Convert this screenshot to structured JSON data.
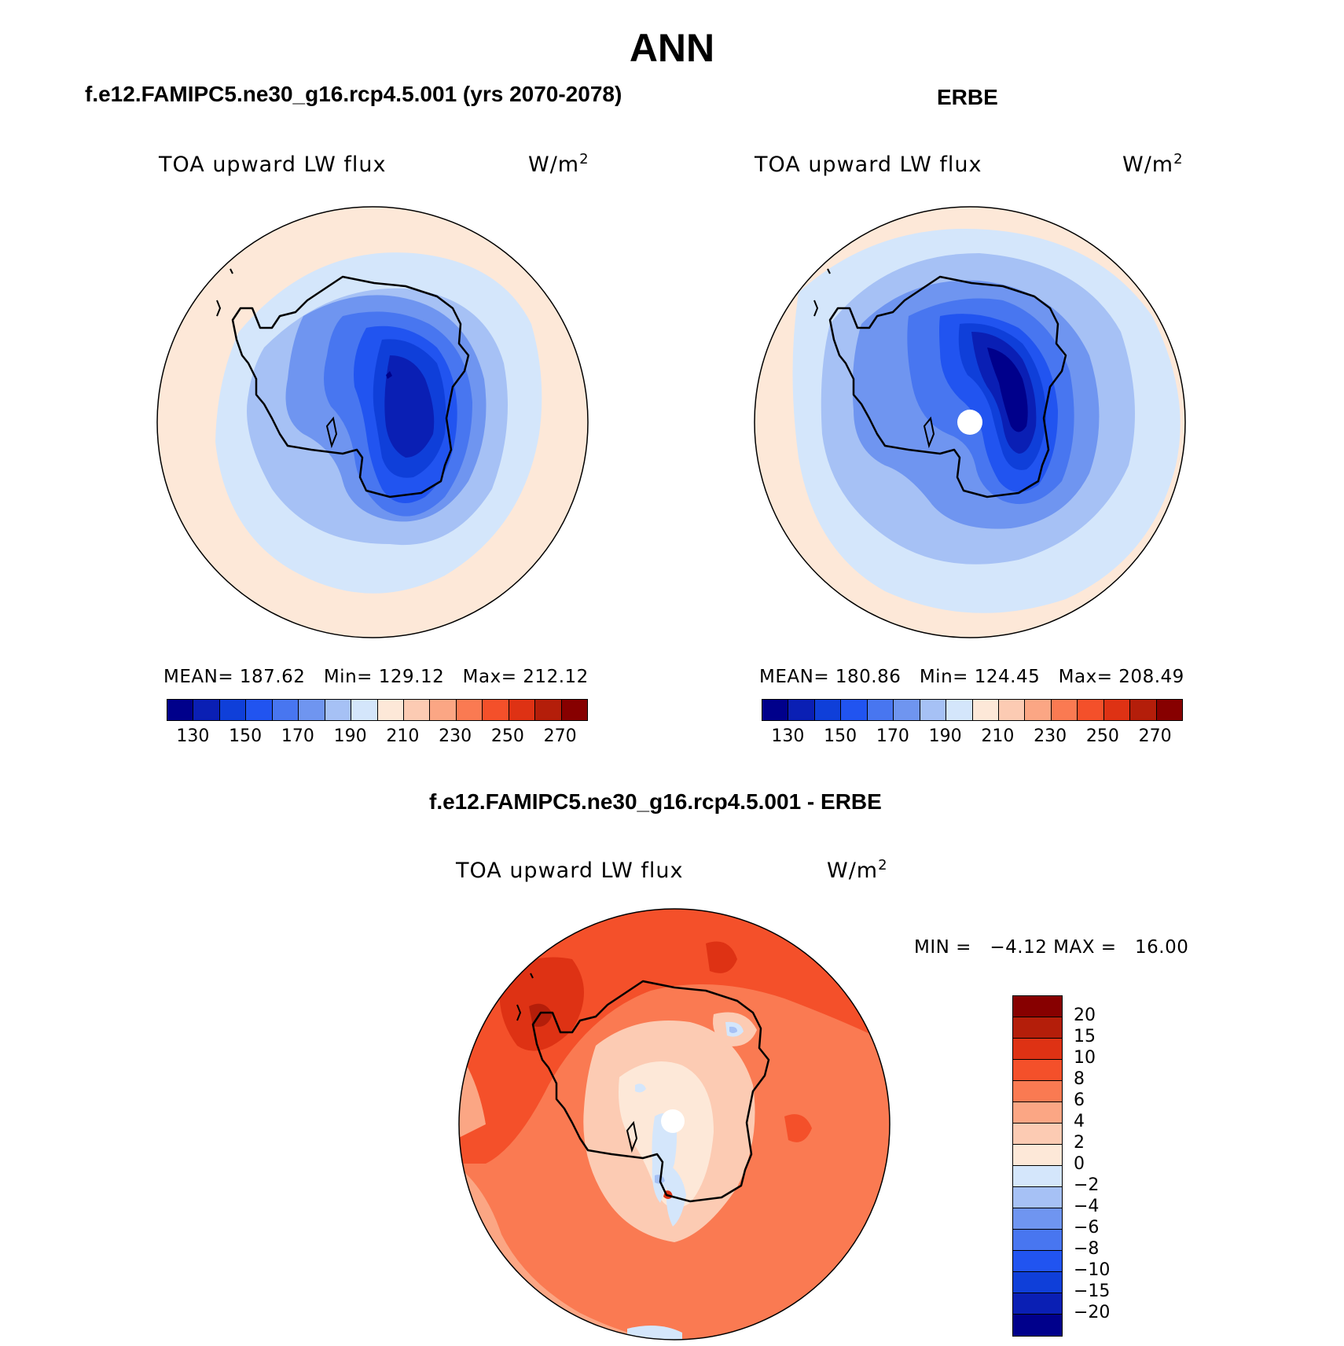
{
  "title": "ANN",
  "panels": [
    {
      "title": "f.e12.FAMIPC5.ne30_g16.rcp4.5.001 (yrs 2070-2078)",
      "field": "TOA upward LW flux",
      "units_base": "W/m",
      "units_exp": "2",
      "stats": {
        "mean_label": "MEAN=",
        "mean": "187.62",
        "min_label": "Min=",
        "min": "129.12",
        "max_label": "Max=",
        "max": "212.12"
      },
      "colorbar": {
        "colors": [
          "#00008b",
          "#0a1fb4",
          "#0f3fd9",
          "#2154f0",
          "#4876f0",
          "#6f95f0",
          "#a6c1f5",
          "#d4e6fb",
          "#fde8d8",
          "#fccbb3",
          "#fba684",
          "#fa7a52",
          "#f4502a",
          "#de3214",
          "#b41e0a",
          "#870000"
        ],
        "labels": [
          "130",
          "150",
          "170",
          "190",
          "210",
          "230",
          "250",
          "270"
        ]
      }
    },
    {
      "title": "ERBE",
      "field": "TOA upward LW flux",
      "units_base": "W/m",
      "units_exp": "2",
      "stats": {
        "mean_label": "MEAN=",
        "mean": "180.86",
        "min_label": "Min=",
        "min": "124.45",
        "max_label": "Max=",
        "max": "208.49"
      },
      "colorbar": {
        "colors": [
          "#00008b",
          "#0a1fb4",
          "#0f3fd9",
          "#2154f0",
          "#4876f0",
          "#6f95f0",
          "#a6c1f5",
          "#d4e6fb",
          "#fde8d8",
          "#fccbb3",
          "#fba684",
          "#fa7a52",
          "#f4502a",
          "#de3214",
          "#b41e0a",
          "#870000"
        ],
        "labels": [
          "130",
          "150",
          "170",
          "190",
          "210",
          "230",
          "250",
          "270"
        ]
      }
    },
    {
      "title": "f.e12.FAMIPC5.ne30_g16.rcp4.5.001 - ERBE",
      "field": "TOA upward LW flux",
      "units_base": "W/m",
      "units_exp": "2",
      "minmax": "MIN =   −4.12 MAX =   16.00",
      "colorbar": {
        "colors": [
          "#870000",
          "#b41e0a",
          "#de3214",
          "#f4502a",
          "#fa7a52",
          "#fba684",
          "#fccbb3",
          "#fde8d8",
          "#d4e6fb",
          "#a6c1f5",
          "#6f95f0",
          "#4876f0",
          "#2154f0",
          "#0f3fd9",
          "#0a1fb4",
          "#00008b"
        ],
        "labels": [
          "20",
          "15",
          "10",
          "8",
          "6",
          "4",
          "2",
          "0",
          "−2",
          "−4",
          "−6",
          "−8",
          "−10",
          "−15",
          "−20"
        ]
      }
    }
  ]
}
